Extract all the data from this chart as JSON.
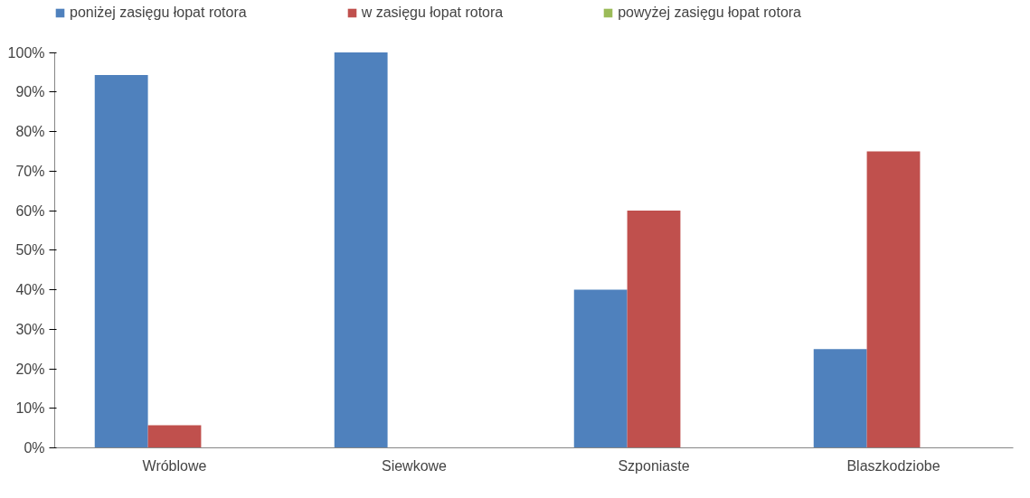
{
  "chart_data": {
    "type": "bar",
    "categories": [
      "Wróblowe",
      "Siewkowe",
      "Szponiaste",
      "Blaszkodziobe"
    ],
    "series": [
      {
        "name": "poniżej zasięgu łopat rotora",
        "color": "#4f81bd",
        "values": [
          94.3,
          100,
          40,
          25
        ]
      },
      {
        "name": "w zasięgu łopat rotora",
        "color": "#c0504d",
        "values": [
          5.7,
          0,
          60,
          75
        ]
      },
      {
        "name": "powyżej zasięgu łopat rotora",
        "color": "#9bbb59",
        "values": [
          0,
          0,
          0,
          0
        ]
      }
    ],
    "ylim": [
      0,
      100
    ],
    "yticks": [
      {
        "value": 0,
        "label": "0%"
      },
      {
        "value": 10,
        "label": "10%"
      },
      {
        "value": 20,
        "label": "20%"
      },
      {
        "value": 30,
        "label": "30%"
      },
      {
        "value": 40,
        "label": "40%"
      },
      {
        "value": 50,
        "label": "50%"
      },
      {
        "value": 60,
        "label": "60%"
      },
      {
        "value": 70,
        "label": "70%"
      },
      {
        "value": 80,
        "label": "80%"
      },
      {
        "value": 90,
        "label": "90%"
      },
      {
        "value": 100,
        "label": "100%"
      }
    ],
    "grid": false,
    "legend": "top"
  }
}
